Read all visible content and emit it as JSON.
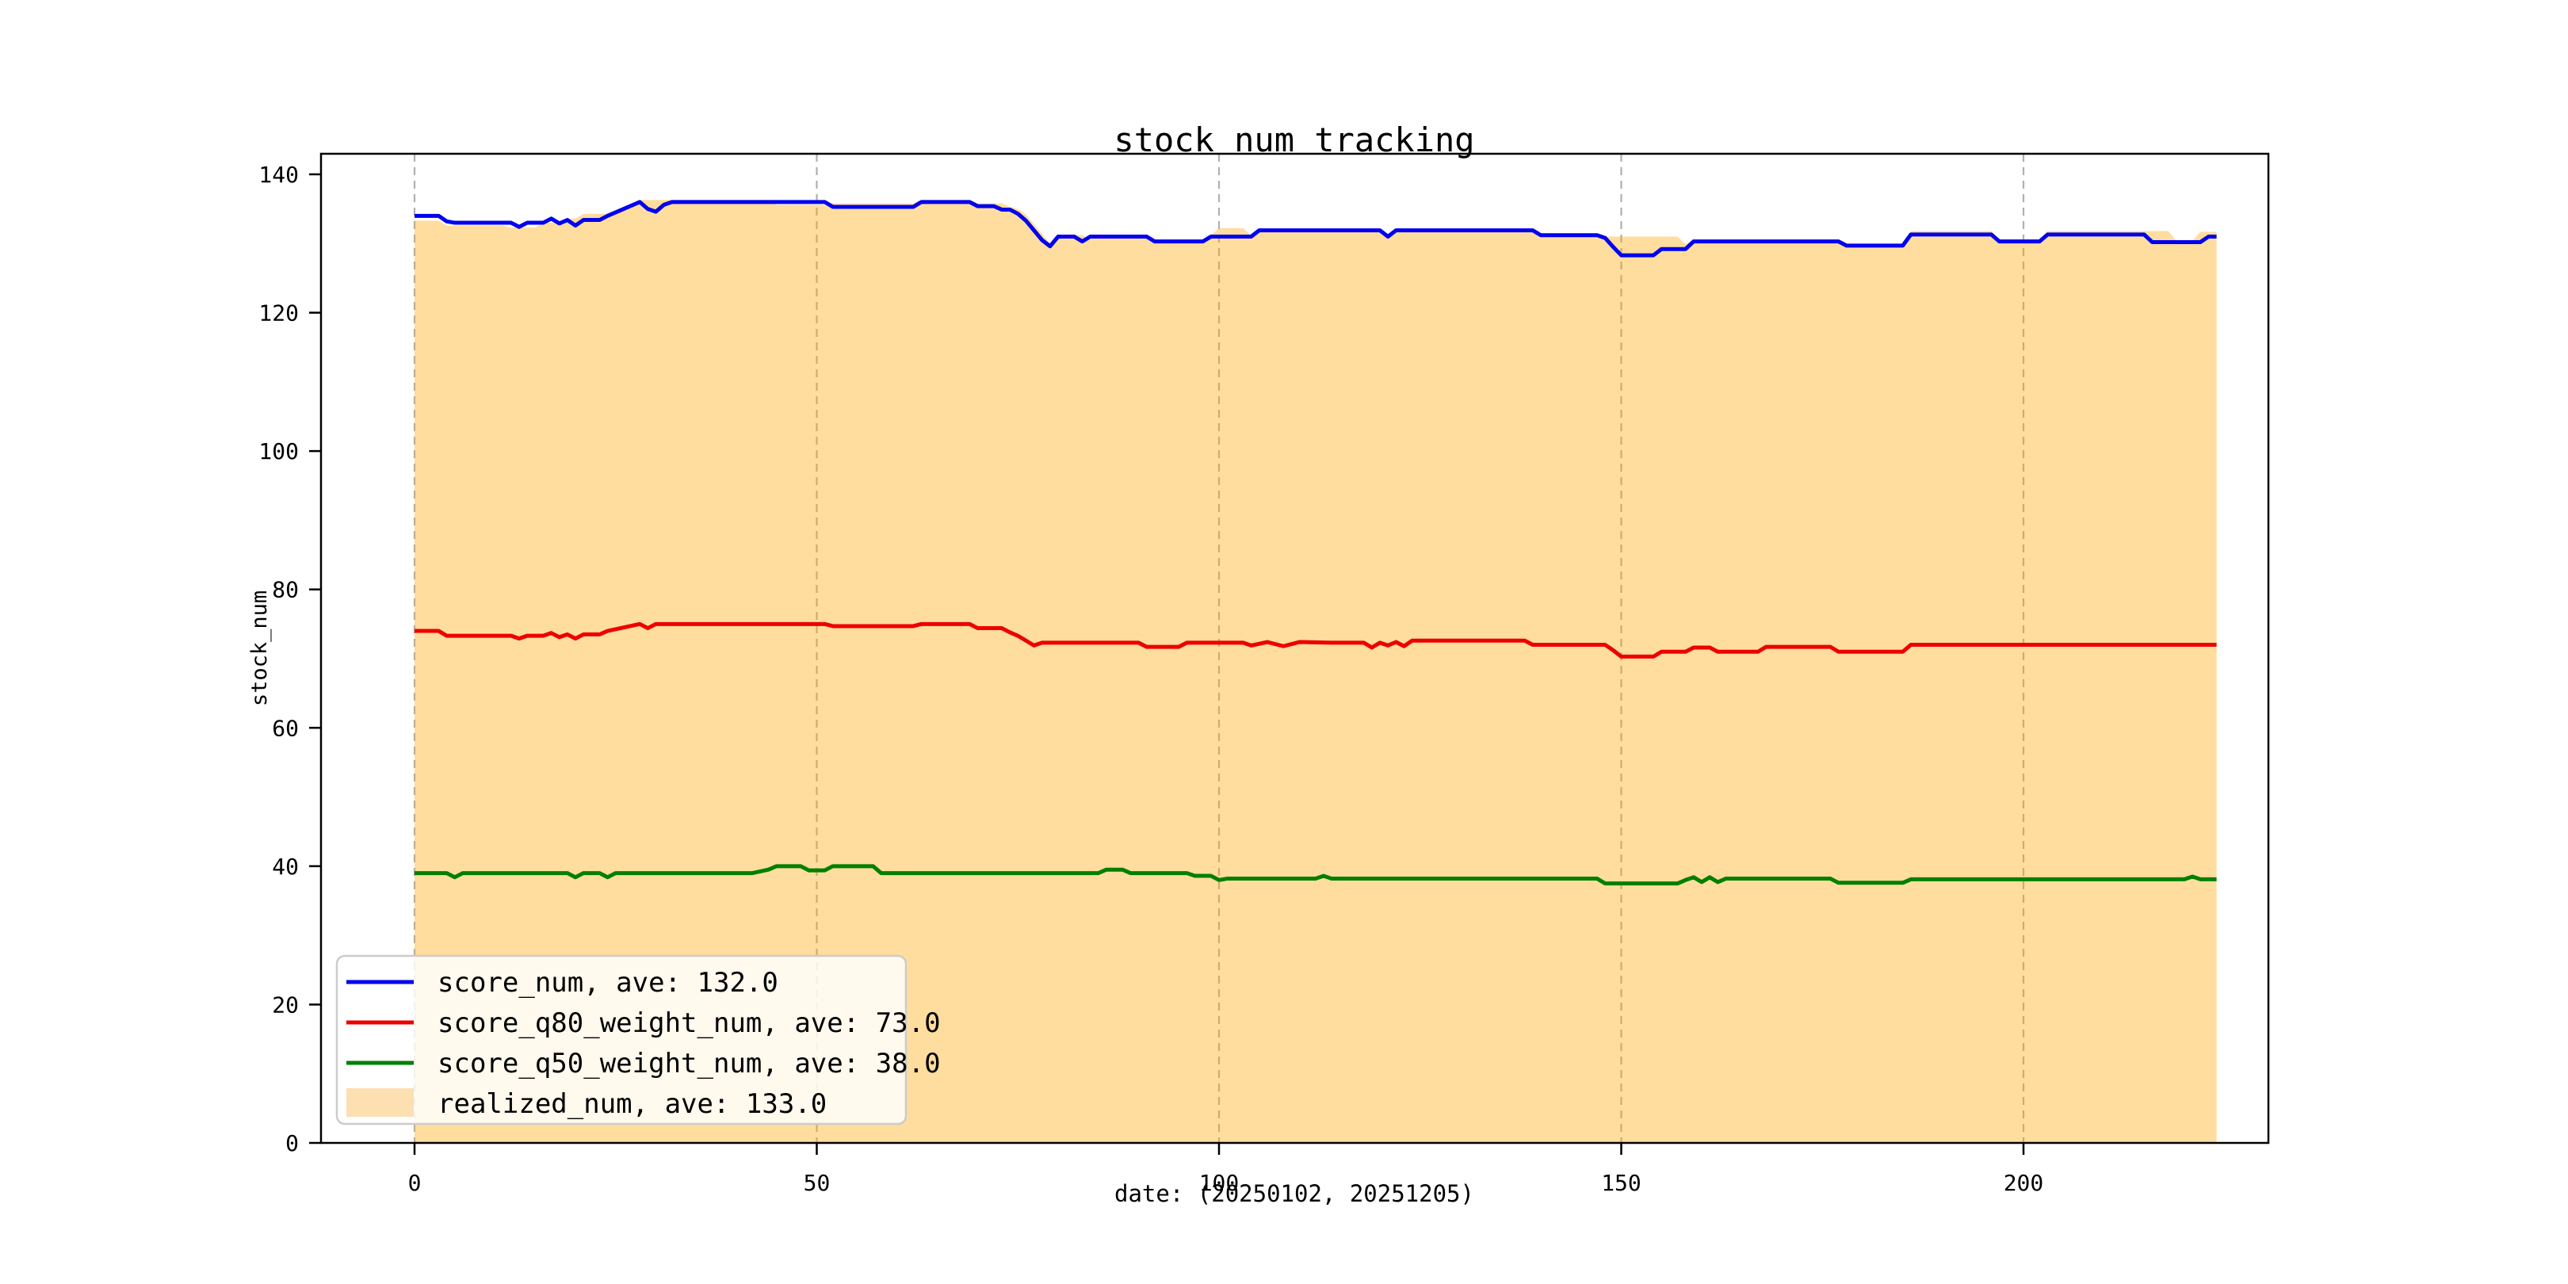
{
  "title": "stock num tracking",
  "xlabel": "date: (20250102, 20251205)",
  "ylabel": "stock_num",
  "legend": {
    "position": "lower left",
    "items": [
      {
        "label": "score_num, ave: 132.0",
        "swatch": "line",
        "color": "#0202ee"
      },
      {
        "label": "score_q80_weight_num, ave: 73.0",
        "swatch": "line",
        "color": "#ee0000"
      },
      {
        "label": "score_q50_weight_num, ave: 38.0",
        "swatch": "line",
        "color": "#008000"
      },
      {
        "label": "realized_num, ave: 133.0",
        "swatch": "patch",
        "color": "#fce0b2"
      }
    ]
  },
  "chart_data": {
    "type": "line",
    "title": "stock num tracking",
    "xlabel": "date: (20250102, 20251205)",
    "ylabel": "stock_num",
    "xlim": [
      -11.6,
      230.5
    ],
    "ylim": [
      0,
      143
    ],
    "x_ticks": [
      0,
      50,
      100,
      150,
      200
    ],
    "y_ticks": [
      0,
      20,
      40,
      60,
      80,
      100,
      120,
      140
    ],
    "grid": "vertical dashed gridlines at x ticks only",
    "grid_color": "#b0b0b0",
    "axis_color": "#000000",
    "legend_position": "lower left",
    "series": [
      {
        "name": "score_num",
        "label": "score_num, ave: 132.0",
        "ave": 132.0,
        "type": "line",
        "color": "#0202ee",
        "points": [
          [
            0,
            134
          ],
          [
            3,
            134
          ],
          [
            4,
            133.2
          ],
          [
            5,
            133
          ],
          [
            12,
            133
          ],
          [
            13,
            132.4
          ],
          [
            14,
            133
          ],
          [
            16,
            133
          ],
          [
            17,
            133.6
          ],
          [
            18,
            132.9
          ],
          [
            19,
            133.4
          ],
          [
            20,
            132.6
          ],
          [
            21,
            133.4
          ],
          [
            23,
            133.4
          ],
          [
            24,
            134
          ],
          [
            26,
            135
          ],
          [
            28,
            136
          ],
          [
            29,
            135
          ],
          [
            30,
            134.6
          ],
          [
            31,
            135.6
          ],
          [
            32,
            136
          ],
          [
            51,
            136
          ],
          [
            52,
            135.3
          ],
          [
            62,
            135.3
          ],
          [
            63,
            136
          ],
          [
            69,
            136
          ],
          [
            70,
            135.4
          ],
          [
            72,
            135.4
          ],
          [
            73,
            134.9
          ],
          [
            74,
            134.9
          ],
          [
            75,
            134.3
          ],
          [
            76,
            133.3
          ],
          [
            77,
            131.9
          ],
          [
            78,
            130.5
          ],
          [
            79,
            129.6
          ],
          [
            80,
            131
          ],
          [
            82,
            131
          ],
          [
            83,
            130.3
          ],
          [
            84,
            131
          ],
          [
            91,
            131
          ],
          [
            92,
            130.3
          ],
          [
            98,
            130.3
          ],
          [
            99,
            131
          ],
          [
            104,
            131
          ],
          [
            105,
            131.9
          ],
          [
            120,
            131.9
          ],
          [
            121,
            131
          ],
          [
            122,
            131.9
          ],
          [
            139,
            131.9
          ],
          [
            140,
            131.2
          ],
          [
            147,
            131.2
          ],
          [
            148,
            130.8
          ],
          [
            149,
            129.5
          ],
          [
            150,
            128.3
          ],
          [
            154,
            128.3
          ],
          [
            155,
            129.2
          ],
          [
            158,
            129.2
          ],
          [
            159,
            130.3
          ],
          [
            177,
            130.3
          ],
          [
            178,
            129.7
          ],
          [
            185,
            129.7
          ],
          [
            186,
            131.3
          ],
          [
            196,
            131.3
          ],
          [
            197,
            130.3
          ],
          [
            202,
            130.3
          ],
          [
            203,
            131.3
          ],
          [
            215,
            131.3
          ],
          [
            216,
            130.2
          ],
          [
            222,
            130.2
          ],
          [
            223,
            131
          ],
          [
            224,
            131
          ]
        ]
      },
      {
        "name": "score_q80_weight_num",
        "label": "score_q80_weight_num, ave: 73.0",
        "ave": 73.0,
        "type": "line",
        "color": "#ee0000",
        "points": [
          [
            0,
            74
          ],
          [
            3,
            74
          ],
          [
            4,
            73.3
          ],
          [
            12,
            73.3
          ],
          [
            13,
            72.9
          ],
          [
            14,
            73.3
          ],
          [
            16,
            73.3
          ],
          [
            17,
            73.7
          ],
          [
            18,
            73.1
          ],
          [
            19,
            73.5
          ],
          [
            20,
            72.9
          ],
          [
            21,
            73.5
          ],
          [
            23,
            73.5
          ],
          [
            24,
            74
          ],
          [
            26,
            74.5
          ],
          [
            28,
            75
          ],
          [
            29,
            74.4
          ],
          [
            30,
            75
          ],
          [
            51,
            75
          ],
          [
            52,
            74.7
          ],
          [
            62,
            74.7
          ],
          [
            63,
            75
          ],
          [
            69,
            75
          ],
          [
            70,
            74.4
          ],
          [
            73,
            74.4
          ],
          [
            74,
            73.8
          ],
          [
            75,
            73.3
          ],
          [
            76,
            72.6
          ],
          [
            77,
            71.9
          ],
          [
            78,
            72.3
          ],
          [
            90,
            72.3
          ],
          [
            91,
            71.7
          ],
          [
            95,
            71.7
          ],
          [
            96,
            72.3
          ],
          [
            103,
            72.3
          ],
          [
            104,
            71.9
          ],
          [
            106,
            72.4
          ],
          [
            108,
            71.8
          ],
          [
            110,
            72.4
          ],
          [
            114,
            72.3
          ],
          [
            118,
            72.3
          ],
          [
            119,
            71.6
          ],
          [
            120,
            72.3
          ],
          [
            121,
            71.9
          ],
          [
            122,
            72.4
          ],
          [
            123,
            71.8
          ],
          [
            124,
            72.6
          ],
          [
            138,
            72.6
          ],
          [
            139,
            72
          ],
          [
            148,
            72
          ],
          [
            149,
            71.2
          ],
          [
            150,
            70.3
          ],
          [
            154,
            70.3
          ],
          [
            155,
            71
          ],
          [
            158,
            71
          ],
          [
            159,
            71.6
          ],
          [
            161,
            71.6
          ],
          [
            162,
            71
          ],
          [
            167,
            71
          ],
          [
            168,
            71.7
          ],
          [
            176,
            71.7
          ],
          [
            177,
            71
          ],
          [
            185,
            71
          ],
          [
            186,
            72
          ],
          [
            224,
            72
          ]
        ]
      },
      {
        "name": "score_q50_weight_num",
        "label": "score_q50_weight_num, ave: 38.0",
        "ave": 38.0,
        "type": "line",
        "color": "#008000",
        "points": [
          [
            0,
            39
          ],
          [
            4,
            39
          ],
          [
            5,
            38.4
          ],
          [
            6,
            39
          ],
          [
            19,
            39
          ],
          [
            20,
            38.4
          ],
          [
            21,
            39
          ],
          [
            23,
            39
          ],
          [
            24,
            38.4
          ],
          [
            25,
            39
          ],
          [
            42,
            39
          ],
          [
            44,
            39.5
          ],
          [
            45,
            40
          ],
          [
            48,
            40
          ],
          [
            49,
            39.4
          ],
          [
            51,
            39.4
          ],
          [
            52,
            40
          ],
          [
            57,
            40
          ],
          [
            58,
            39
          ],
          [
            85,
            39
          ],
          [
            86,
            39.5
          ],
          [
            88,
            39.5
          ],
          [
            89,
            39
          ],
          [
            96,
            39
          ],
          [
            97,
            38.6
          ],
          [
            99,
            38.6
          ],
          [
            100,
            38
          ],
          [
            101,
            38.2
          ],
          [
            112,
            38.2
          ],
          [
            113,
            38.6
          ],
          [
            114,
            38.2
          ],
          [
            147,
            38.2
          ],
          [
            148,
            37.5
          ],
          [
            157,
            37.5
          ],
          [
            158,
            38
          ],
          [
            159,
            38.4
          ],
          [
            160,
            37.7
          ],
          [
            161,
            38.4
          ],
          [
            162,
            37.7
          ],
          [
            163,
            38.2
          ],
          [
            176,
            38.2
          ],
          [
            177,
            37.6
          ],
          [
            185,
            37.6
          ],
          [
            186,
            38.1
          ],
          [
            220,
            38.1
          ],
          [
            221,
            38.5
          ],
          [
            222,
            38.1
          ],
          [
            224,
            38.1
          ]
        ]
      },
      {
        "name": "realized_num",
        "label": "realized_num, ave: 133.0",
        "ave": 133.0,
        "type": "area",
        "color": "#ffa500",
        "fill_opacity": 0.38,
        "points": [
          [
            0,
            133.3
          ],
          [
            3,
            133.3
          ],
          [
            4,
            132.6
          ],
          [
            11,
            132.6
          ],
          [
            12,
            132.3
          ],
          [
            15,
            132.3
          ],
          [
            16,
            133
          ],
          [
            18,
            133
          ],
          [
            19,
            133.6
          ],
          [
            20,
            133.6
          ],
          [
            21,
            134.3
          ],
          [
            25,
            134.3
          ],
          [
            26,
            135.2
          ],
          [
            28,
            136.3
          ],
          [
            44,
            136.3
          ],
          [
            45,
            135.6
          ],
          [
            51,
            135.6
          ],
          [
            52,
            135.8
          ],
          [
            62,
            135.8
          ],
          [
            63,
            136.3
          ],
          [
            69,
            136.3
          ],
          [
            70,
            135.8
          ],
          [
            73,
            135.8
          ],
          [
            74,
            135.3
          ],
          [
            75,
            135
          ],
          [
            76,
            134.2
          ],
          [
            77,
            132.8
          ],
          [
            78,
            131.4
          ],
          [
            79,
            130
          ],
          [
            80,
            131.2
          ],
          [
            83,
            131.2
          ],
          [
            84,
            130.5
          ],
          [
            85,
            131.2
          ],
          [
            91,
            131.2
          ],
          [
            92,
            130.4
          ],
          [
            98,
            130.4
          ],
          [
            99,
            131.2
          ],
          [
            100,
            132.2
          ],
          [
            103,
            132.2
          ],
          [
            104,
            131.2
          ],
          [
            105,
            132
          ],
          [
            120,
            132
          ],
          [
            121,
            131.2
          ],
          [
            122,
            132
          ],
          [
            139,
            132
          ],
          [
            140,
            131.4
          ],
          [
            147,
            131.4
          ],
          [
            148,
            131
          ],
          [
            157,
            131
          ],
          [
            158,
            129.9
          ],
          [
            159,
            130.6
          ],
          [
            161,
            130.4
          ],
          [
            177,
            130.4
          ],
          [
            178,
            129.9
          ],
          [
            185,
            129.9
          ],
          [
            186,
            131.8
          ],
          [
            196,
            131.8
          ],
          [
            197,
            130.6
          ],
          [
            202,
            130.6
          ],
          [
            203,
            131.8
          ],
          [
            218,
            131.8
          ],
          [
            219,
            130.4
          ],
          [
            221,
            130.4
          ],
          [
            222,
            131.7
          ],
          [
            224,
            131.7
          ]
        ]
      }
    ]
  }
}
